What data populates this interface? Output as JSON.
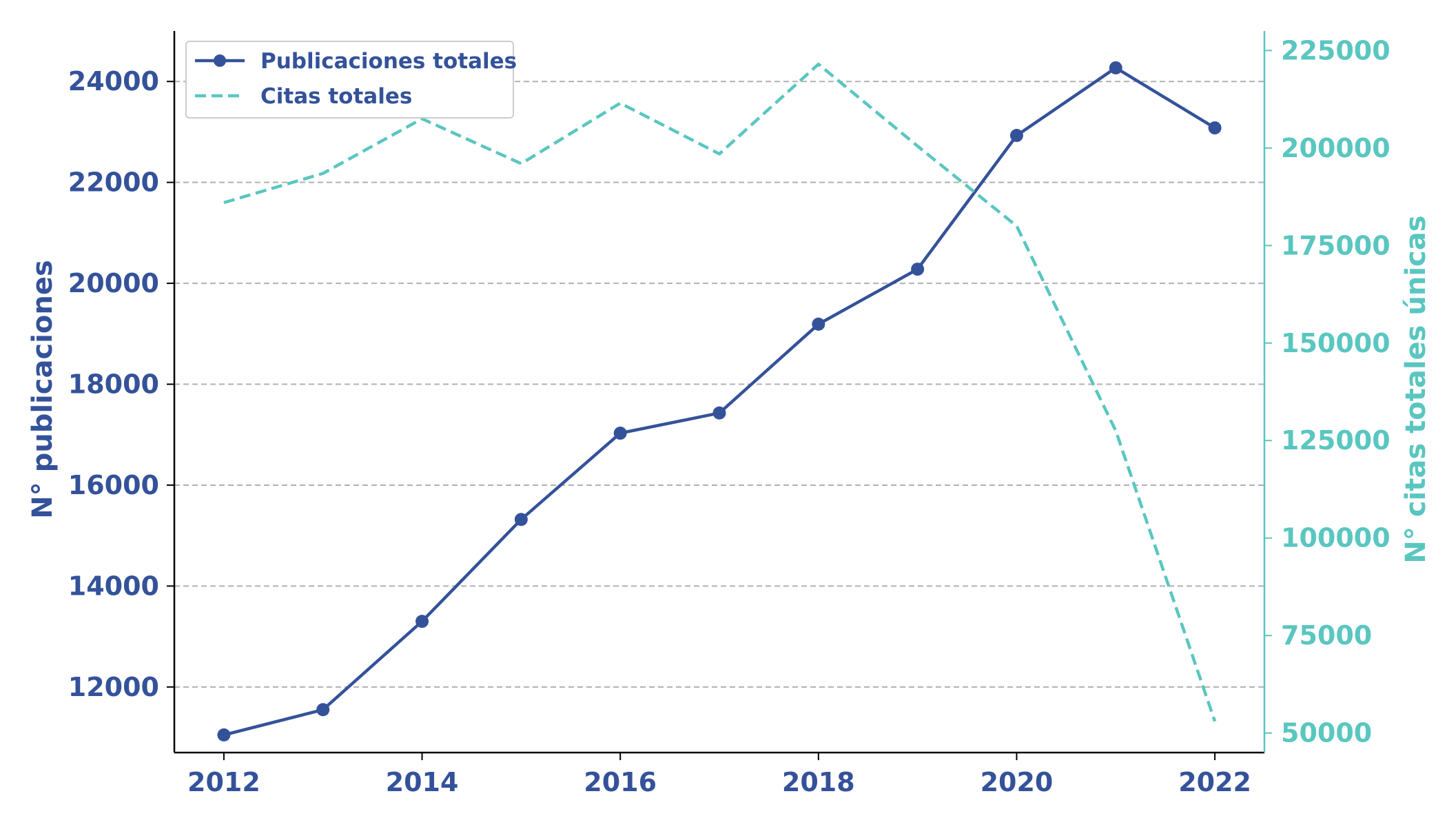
{
  "chart_data": {
    "type": "line",
    "x": [
      2012,
      2013,
      2014,
      2015,
      2016,
      2017,
      2018,
      2019,
      2020,
      2021,
      2022
    ],
    "x_ticks": [
      "2012",
      "2014",
      "2016",
      "2018",
      "2020",
      "2022"
    ],
    "xlim": [
      2011.5,
      2022.5
    ],
    "grid": true,
    "legend_position": "top-left",
    "y_left": {
      "label": "N° publicaciones",
      "ylim": [
        10700,
        25000
      ],
      "ticks": [
        "12000",
        "14000",
        "16000",
        "18000",
        "20000",
        "22000",
        "24000"
      ],
      "color": "#34529a"
    },
    "y_right": {
      "label": "N° citas totales únicas",
      "ylim": [
        45000,
        230000
      ],
      "ticks": [
        "50000",
        "75000",
        "100000",
        "125000",
        "150000",
        "175000",
        "200000",
        "225000"
      ],
      "color": "#5ac6c0"
    },
    "series": [
      {
        "name": "Publicaciones totales",
        "axis": "left",
        "style": "solid-markers",
        "color": "#34529a",
        "values": [
          11050,
          11550,
          13300,
          15320,
          17030,
          17430,
          19190,
          20280,
          22930,
          24270,
          23080
        ]
      },
      {
        "name": "Citas totales",
        "axis": "right",
        "style": "dashed",
        "color": "#5ac6c0",
        "values": [
          186000,
          193500,
          207500,
          196000,
          211500,
          198500,
          221500,
          200500,
          180000,
          127500,
          53000
        ]
      }
    ]
  }
}
